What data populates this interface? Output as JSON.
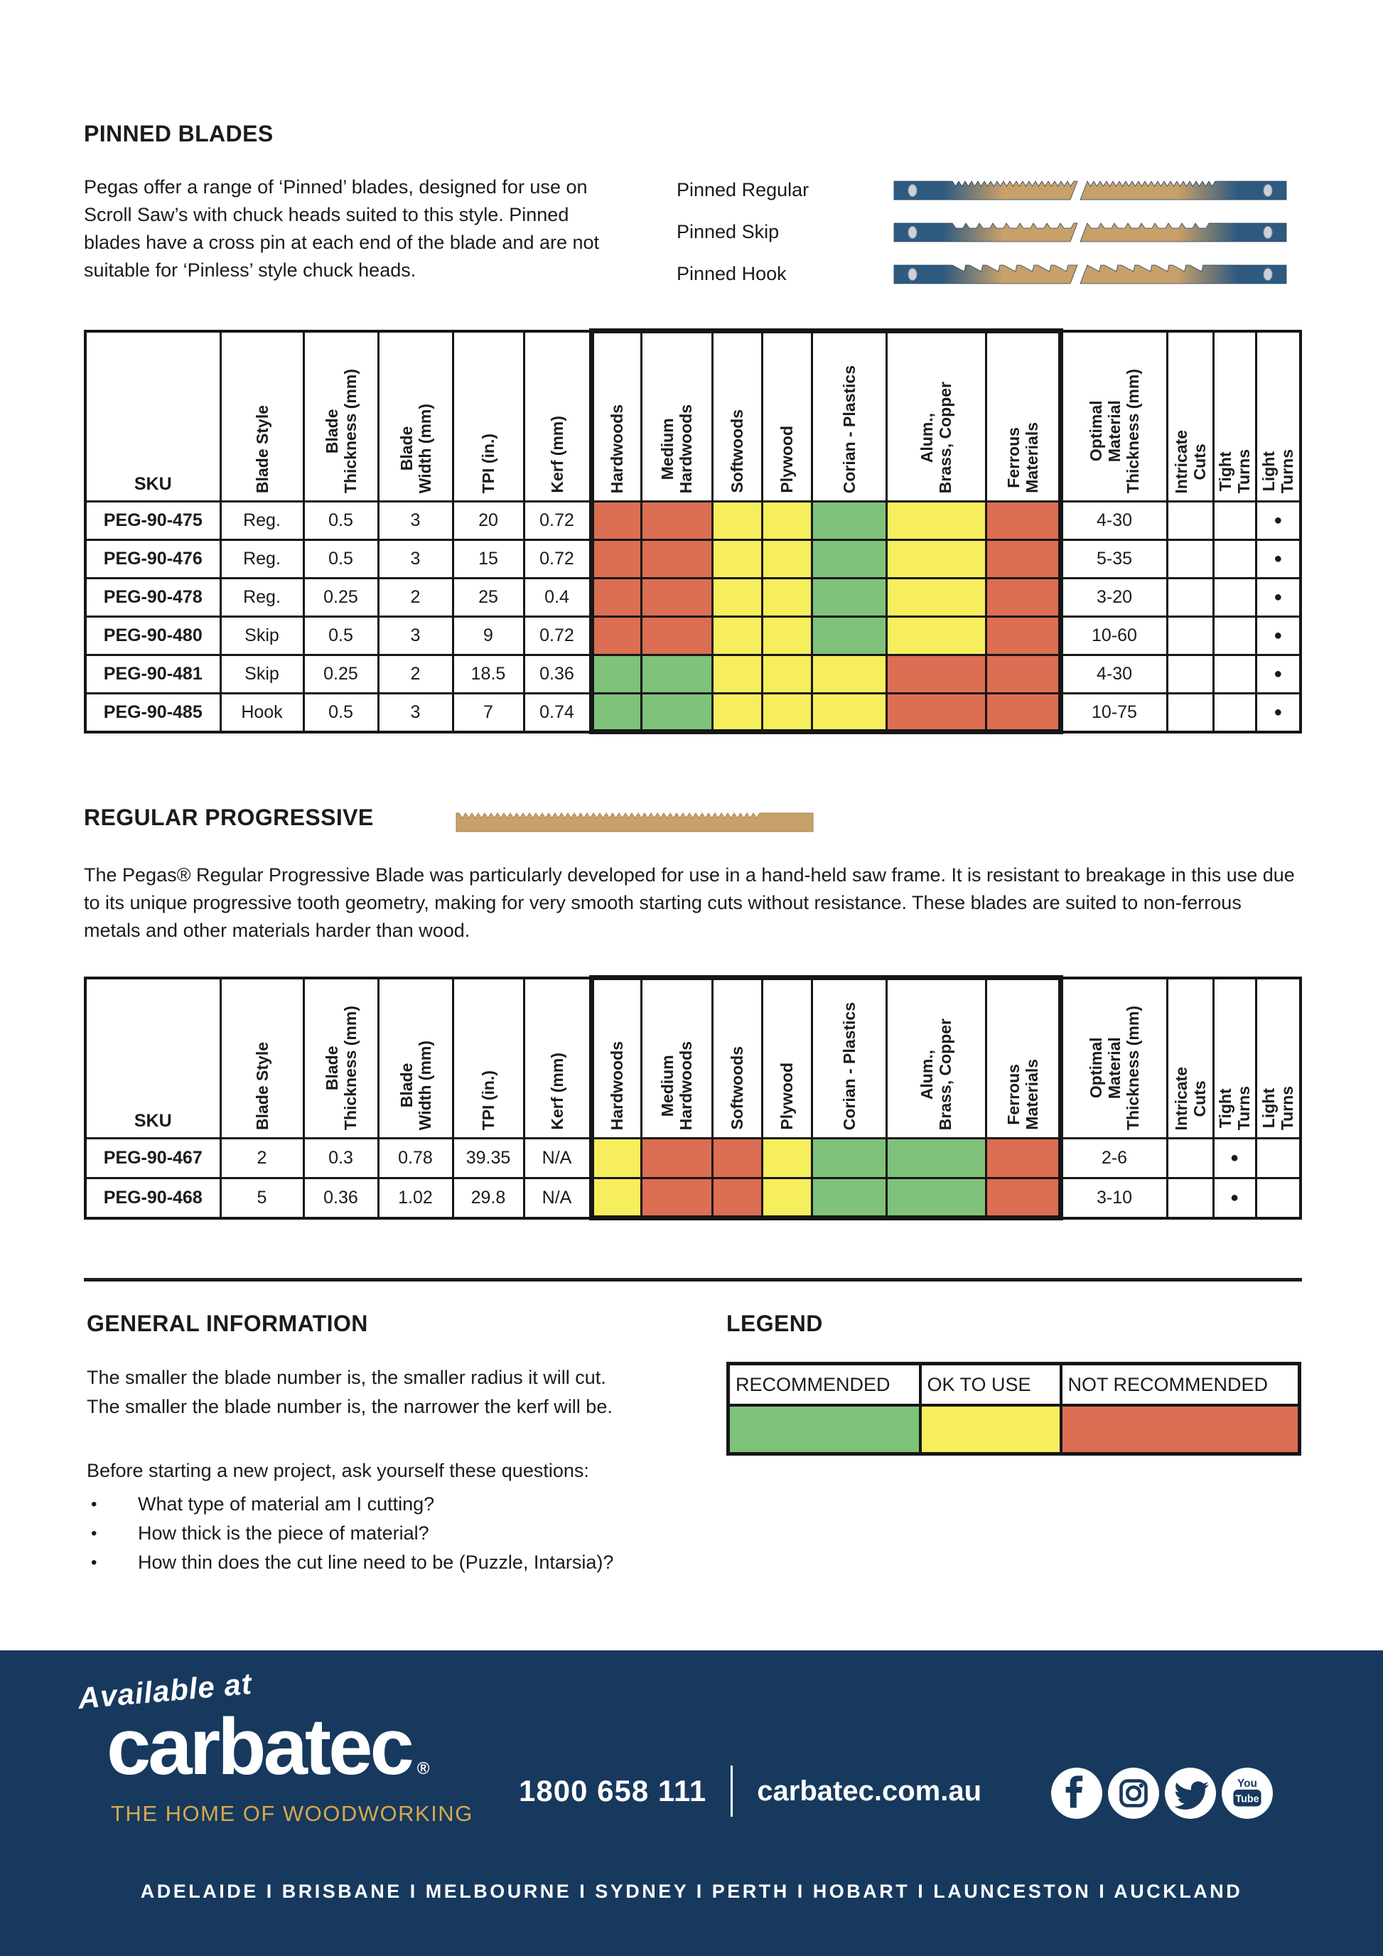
{
  "colors": {
    "rec": "#7FC27B",
    "ok": "#F7EE5E",
    "nr": "#DC6E53",
    "navy": "#17395E",
    "gold": "#D7A94C"
  },
  "pinned": {
    "title": "PINNED BLADES",
    "intro": "Pegas offer a range of ‘Pinned’ blades, designed for use on Scroll Saw’s with chuck heads suited to this style. Pinned blades have a cross pin at each end of the blade and are not suitable for ‘Pinless’ style chuck heads.",
    "blades": [
      {
        "label": "Pinned Regular",
        "type": "regular"
      },
      {
        "label": "Pinned Skip",
        "type": "skip"
      },
      {
        "label": "Pinned Hook",
        "type": "hook"
      }
    ]
  },
  "table_headers": [
    "SKU",
    "Blade Style",
    "Blade\nThickness (mm)",
    "Blade\nWidth (mm)",
    "TPI (in.)",
    "Kerf (mm)",
    "Hardwoods",
    "Medium\nHardwoods",
    "Softwoods",
    "Plywood",
    "Corian  - Plastics",
    "Alum.,\nBrass, Copper",
    "Ferrous\nMaterials",
    "Optimal\nMaterial\nThickness (mm)",
    "Intricate\nCuts",
    "Tight\nTurns",
    "Light\nTurns"
  ],
  "pinned_table": {
    "rows": [
      {
        "sku": "PEG-90-475",
        "style": "Reg.",
        "thickness": "0.5",
        "width": "3",
        "tpi": "20",
        "kerf": "0.72",
        "materials": [
          "nr",
          "nr",
          "ok",
          "ok",
          "rec",
          "ok",
          "nr"
        ],
        "optimal": "4-30",
        "intricate": "",
        "tight": "",
        "light": "●"
      },
      {
        "sku": "PEG-90-476",
        "style": "Reg.",
        "thickness": "0.5",
        "width": "3",
        "tpi": "15",
        "kerf": "0.72",
        "materials": [
          "nr",
          "nr",
          "ok",
          "ok",
          "rec",
          "ok",
          "nr"
        ],
        "optimal": "5-35",
        "intricate": "",
        "tight": "",
        "light": "●"
      },
      {
        "sku": "PEG-90-478",
        "style": "Reg.",
        "thickness": "0.25",
        "width": "2",
        "tpi": "25",
        "kerf": "0.4",
        "materials": [
          "nr",
          "nr",
          "ok",
          "ok",
          "rec",
          "ok",
          "nr"
        ],
        "optimal": "3-20",
        "intricate": "",
        "tight": "",
        "light": "●"
      },
      {
        "sku": "PEG-90-480",
        "style": "Skip",
        "thickness": "0.5",
        "width": "3",
        "tpi": "9",
        "kerf": "0.72",
        "materials": [
          "nr",
          "nr",
          "ok",
          "ok",
          "rec",
          "ok",
          "nr"
        ],
        "optimal": "10-60",
        "intricate": "",
        "tight": "",
        "light": "●"
      },
      {
        "sku": "PEG-90-481",
        "style": "Skip",
        "thickness": "0.25",
        "width": "2",
        "tpi": "18.5",
        "kerf": "0.36",
        "materials": [
          "rec",
          "rec",
          "ok",
          "ok",
          "ok",
          "nr",
          "nr"
        ],
        "optimal": "4-30",
        "intricate": "",
        "tight": "",
        "light": "●"
      },
      {
        "sku": "PEG-90-485",
        "style": "Hook",
        "thickness": "0.5",
        "width": "3",
        "tpi": "7",
        "kerf": "0.74",
        "materials": [
          "rec",
          "rec",
          "ok",
          "ok",
          "ok",
          "nr",
          "nr"
        ],
        "optimal": "10-75",
        "intricate": "",
        "tight": "",
        "light": "●"
      }
    ]
  },
  "progressive": {
    "title": "REGULAR PROGRESSIVE",
    "paragraph": "The Pegas® Regular Progressive Blade was particularly developed for use in a hand-held saw frame. It is resistant to breakage in this use due to its unique progressive tooth geometry, making for very smooth starting cuts without resistance. These blades are suited to non-ferrous metals and other materials harder than wood."
  },
  "progressive_table": {
    "rows": [
      {
        "sku": "PEG-90-467",
        "style": "2",
        "thickness": "0.3",
        "width": "0.78",
        "tpi": "39.35",
        "kerf": "N/A",
        "materials": [
          "ok",
          "nr",
          "nr",
          "ok",
          "rec",
          "rec",
          "nr"
        ],
        "optimal": "2-6",
        "intricate": "",
        "tight": "●",
        "light": ""
      },
      {
        "sku": "PEG-90-468",
        "style": "5",
        "thickness": "0.36",
        "width": "1.02",
        "tpi": "29.8",
        "kerf": "N/A",
        "materials": [
          "ok",
          "nr",
          "nr",
          "ok",
          "rec",
          "rec",
          "nr"
        ],
        "optimal": "3-10",
        "intricate": "",
        "tight": "●",
        "light": ""
      }
    ]
  },
  "general": {
    "title": "GENERAL INFORMATION",
    "lines": [
      "The smaller the blade number is, the smaller radius it will cut.",
      "The smaller the blade number is, the narrower the kerf will be."
    ],
    "question_intro": "Before starting a new project, ask yourself these questions:",
    "bullets": [
      "What type of material am I cutting?",
      "How thick is the piece of material?",
      "How thin does the cut line need to be (Puzzle, Intarsia)?"
    ]
  },
  "legend": {
    "title": "LEGEND",
    "items": [
      {
        "label": "RECOMMENDED",
        "key": "rec"
      },
      {
        "label": "OK TO USE",
        "key": "ok"
      },
      {
        "label": "NOT RECOMMENDED",
        "key": "nr"
      }
    ]
  },
  "footer": {
    "available_at": "Available at",
    "brand": "carbatec",
    "registered": "®",
    "tagline": "THE HOME OF WOODWORKING",
    "phone": "1800 658 111",
    "website": "carbatec.com.au",
    "social": [
      "facebook-icon",
      "instagram-icon",
      "twitter-icon",
      "youtube-icon"
    ],
    "cities": [
      "ADELAIDE",
      "BRISBANE",
      "MELBOURNE",
      "SYDNEY",
      "PERTH",
      "HOBART",
      "LAUNCESTON",
      "AUCKLAND"
    ]
  }
}
